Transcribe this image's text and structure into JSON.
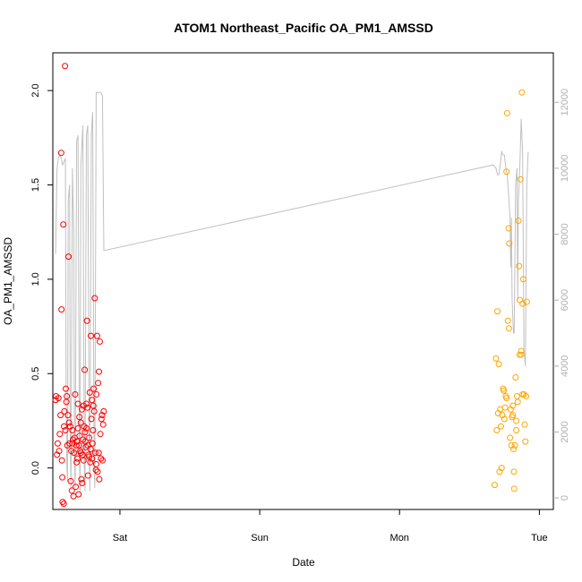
{
  "chart_data": {
    "type": "scatter",
    "title": "ATOM1 Northeast_Pacific OA_PM1_AMSSD",
    "xlabel": "Date",
    "ylabel": "OA_PM1_AMSSD",
    "x_ticks": [
      "Sat",
      "Sun",
      "Mon",
      "Tue"
    ],
    "x_tick_days": [
      1,
      2,
      3,
      4
    ],
    "xlim": [
      0.52,
      4.1
    ],
    "ylim": [
      -0.22,
      2.2
    ],
    "y_ticks": [
      0.0,
      0.5,
      1.0,
      1.5,
      2.0
    ],
    "y_tick_labels": [
      "0.0",
      "0.5",
      "1.0",
      "1.5",
      "2.0"
    ],
    "y2_ticks": [
      0,
      2000,
      4000,
      6000,
      8000,
      10000,
      12000
    ],
    "y2lim": [
      -350,
      13500
    ],
    "grid": false,
    "colors": {
      "series1": "#ff0000",
      "series2": "#ffa500",
      "altitude": "#c0c0c0"
    },
    "series": [
      {
        "color": "#ff0000",
        "points": [
          [
            0.54,
            0.36
          ],
          [
            0.543,
            0.38
          ],
          [
            0.55,
            0.07
          ],
          [
            0.555,
            0.13
          ],
          [
            0.56,
            0.37
          ],
          [
            0.565,
            0.09
          ],
          [
            0.57,
            0.18
          ],
          [
            0.575,
            0.28
          ],
          [
            0.58,
            1.67
          ],
          [
            0.582,
            0.84
          ],
          [
            0.585,
            0.04
          ],
          [
            0.588,
            -0.05
          ],
          [
            0.59,
            -0.18
          ],
          [
            0.595,
            1.29
          ],
          [
            0.598,
            -0.19
          ],
          [
            0.6,
            0.22
          ],
          [
            0.603,
            0.3
          ],
          [
            0.607,
            2.13
          ],
          [
            0.61,
            0.2
          ],
          [
            0.613,
            0.42
          ],
          [
            0.617,
            0.35
          ],
          [
            0.62,
            0.38
          ],
          [
            0.624,
            0.12
          ],
          [
            0.628,
            0.28
          ],
          [
            0.632,
            1.12
          ],
          [
            0.636,
            0.24
          ],
          [
            0.64,
            0.13
          ],
          [
            0.644,
            0.22
          ],
          [
            0.648,
            -0.07
          ],
          [
            0.652,
            0.09
          ],
          [
            0.656,
            -0.12
          ],
          [
            0.66,
            0.2
          ],
          [
            0.664,
            0.15
          ],
          [
            0.668,
            -0.15
          ],
          [
            0.672,
            0.08
          ],
          [
            0.676,
            0.16
          ],
          [
            0.68,
            0.39
          ],
          [
            0.684,
            -0.1
          ],
          [
            0.688,
            0.12
          ],
          [
            0.692,
            0.14
          ],
          [
            0.696,
            0.05
          ],
          [
            0.7,
            0.21
          ],
          [
            0.704,
            -0.14
          ],
          [
            0.708,
            0.12
          ],
          [
            0.712,
            0.17
          ],
          [
            0.716,
            0.09
          ],
          [
            0.72,
            0.24
          ],
          [
            0.724,
            -0.06
          ],
          [
            0.728,
            0.31
          ],
          [
            0.732,
            0.07
          ],
          [
            0.736,
            0.15
          ],
          [
            0.74,
            0.04
          ],
          [
            0.744,
            0.22
          ],
          [
            0.748,
            0.52
          ],
          [
            0.752,
            0.14
          ],
          [
            0.756,
            0.11
          ],
          [
            0.76,
            0.34
          ],
          [
            0.764,
            0.78
          ],
          [
            0.768,
            0.32
          ],
          [
            0.772,
            -0.04
          ],
          [
            0.776,
            0.07
          ],
          [
            0.78,
            0.16
          ],
          [
            0.784,
            0.4
          ],
          [
            0.788,
            0.03
          ],
          [
            0.792,
            0.7
          ],
          [
            0.796,
            0.26
          ],
          [
            0.8,
            0.05
          ],
          [
            0.804,
            0.13
          ],
          [
            0.808,
            0.2
          ],
          [
            0.812,
            0.42
          ],
          [
            0.816,
            0.3
          ],
          [
            0.82,
            0.9
          ],
          [
            0.824,
            0.08
          ],
          [
            0.828,
            -0.01
          ],
          [
            0.832,
            0.39
          ],
          [
            0.836,
            0.7
          ],
          [
            0.84,
            -0.02
          ],
          [
            0.844,
            0.45
          ],
          [
            0.848,
            0.08
          ],
          [
            0.852,
            -0.06
          ],
          [
            0.856,
            0.67
          ],
          [
            0.86,
            0.18
          ],
          [
            0.864,
            0.05
          ],
          [
            0.868,
            0.26
          ],
          [
            0.872,
            0.28
          ],
          [
            0.876,
            0.04
          ],
          [
            0.88,
            0.23
          ],
          [
            0.884,
            0.3
          ],
          [
            0.7,
            0.34
          ],
          [
            0.72,
            0.08
          ],
          [
            0.74,
            0.33
          ],
          [
            0.76,
            0.21
          ],
          [
            0.78,
            0.06
          ],
          [
            0.8,
            0.36
          ],
          [
            0.66,
            0.13
          ],
          [
            0.69,
            0.03
          ],
          [
            0.71,
            0.27
          ],
          [
            0.73,
            -0.08
          ],
          [
            0.75,
            0.19
          ],
          [
            0.77,
            0.12
          ],
          [
            0.79,
            0.1
          ],
          [
            0.81,
            0.33
          ],
          [
            0.83,
            0.02
          ],
          [
            0.85,
            0.51
          ]
        ]
      },
      {
        "color": "#ffa500",
        "points": [
          [
            3.68,
            -0.09
          ],
          [
            3.69,
            0.58
          ],
          [
            3.695,
            0.2
          ],
          [
            3.7,
            0.83
          ],
          [
            3.705,
            0.29
          ],
          [
            3.71,
            0.55
          ],
          [
            3.715,
            -0.02
          ],
          [
            3.72,
            0.31
          ],
          [
            3.725,
            0.22
          ],
          [
            3.73,
            0.0
          ],
          [
            3.735,
            0.28
          ],
          [
            3.74,
            0.42
          ],
          [
            3.745,
            0.41
          ],
          [
            3.75,
            0.26
          ],
          [
            3.755,
            0.32
          ],
          [
            3.76,
            0.38
          ],
          [
            3.765,
            0.37
          ],
          [
            3.77,
            1.88
          ],
          [
            3.775,
            0.78
          ],
          [
            3.78,
            1.27
          ],
          [
            3.782,
            0.74
          ],
          [
            3.785,
            1.19
          ],
          [
            3.79,
            0.16
          ],
          [
            3.795,
            0.31
          ],
          [
            3.8,
            0.12
          ],
          [
            3.805,
            0.27
          ],
          [
            3.81,
            0.28
          ],
          [
            3.815,
            0.1
          ],
          [
            3.82,
            -0.11
          ],
          [
            3.825,
            0.12
          ],
          [
            3.83,
            0.48
          ],
          [
            3.835,
            0.2
          ],
          [
            3.84,
            0.38
          ],
          [
            3.845,
            0.35
          ],
          [
            3.85,
            1.31
          ],
          [
            3.855,
            1.07
          ],
          [
            3.858,
            0.6
          ],
          [
            3.86,
            0.89
          ],
          [
            3.865,
            1.53
          ],
          [
            3.87,
            0.62
          ],
          [
            3.875,
            1.99
          ],
          [
            3.88,
            0.87
          ],
          [
            3.885,
            1.0
          ],
          [
            3.89,
            0.39
          ],
          [
            3.895,
            0.23
          ],
          [
            3.9,
            0.14
          ],
          [
            3.905,
            0.38
          ],
          [
            3.91,
            0.88
          ],
          [
            3.765,
            1.57
          ],
          [
            3.818,
            -0.02
          ],
          [
            3.87,
            0.6
          ],
          [
            3.88,
            0.39
          ],
          [
            3.835,
            0.25
          ],
          [
            3.81,
            0.33
          ]
        ]
      }
    ],
    "altitude_line": {
      "color": "#c0c0c0",
      "points": [
        [
          0.54,
          7400
        ],
        [
          0.55,
          10000
        ],
        [
          0.56,
          10300
        ],
        [
          0.57,
          10400
        ],
        [
          0.58,
          10300
        ],
        [
          0.59,
          10100
        ],
        [
          0.6,
          10200
        ],
        [
          0.61,
          10300
        ],
        [
          0.615,
          3000
        ],
        [
          0.62,
          1000
        ],
        [
          0.625,
          500
        ],
        [
          0.63,
          9000
        ],
        [
          0.64,
          9500
        ],
        [
          0.645,
          1500
        ],
        [
          0.65,
          300
        ],
        [
          0.66,
          10000
        ],
        [
          0.67,
          8000
        ],
        [
          0.675,
          1000
        ],
        [
          0.68,
          300
        ],
        [
          0.69,
          10800
        ],
        [
          0.7,
          11000
        ],
        [
          0.71,
          1500
        ],
        [
          0.715,
          200
        ],
        [
          0.72,
          10000
        ],
        [
          0.735,
          11300
        ],
        [
          0.745,
          1000
        ],
        [
          0.75,
          200
        ],
        [
          0.76,
          11000
        ],
        [
          0.77,
          11300
        ],
        [
          0.78,
          1500
        ],
        [
          0.785,
          200
        ],
        [
          0.795,
          11000
        ],
        [
          0.805,
          11700
        ],
        [
          0.815,
          1000
        ],
        [
          0.82,
          300
        ],
        [
          0.83,
          12300
        ],
        [
          0.86,
          12300
        ],
        [
          0.875,
          12200
        ],
        [
          0.885,
          7500
        ],
        [
          3.67,
          10100
        ],
        [
          3.69,
          10000
        ],
        [
          3.7,
          9800
        ],
        [
          3.71,
          9800
        ],
        [
          3.72,
          10100
        ],
        [
          3.73,
          10500
        ],
        [
          3.74,
          10400
        ],
        [
          3.75,
          10400
        ],
        [
          3.76,
          10000
        ],
        [
          3.77,
          9800
        ],
        [
          3.78,
          9200
        ],
        [
          3.79,
          8500
        ],
        [
          3.795,
          7000
        ],
        [
          3.8,
          8500
        ],
        [
          3.805,
          6000
        ],
        [
          3.815,
          5000
        ],
        [
          3.82,
          5000
        ],
        [
          3.83,
          9500
        ],
        [
          3.84,
          10000
        ],
        [
          3.845,
          6000
        ],
        [
          3.85,
          9000
        ],
        [
          3.86,
          10000
        ],
        [
          3.87,
          11500
        ],
        [
          3.88,
          10500
        ],
        [
          3.89,
          4500
        ],
        [
          3.9,
          4000
        ],
        [
          3.91,
          9500
        ],
        [
          3.92,
          10500
        ]
      ]
    }
  }
}
